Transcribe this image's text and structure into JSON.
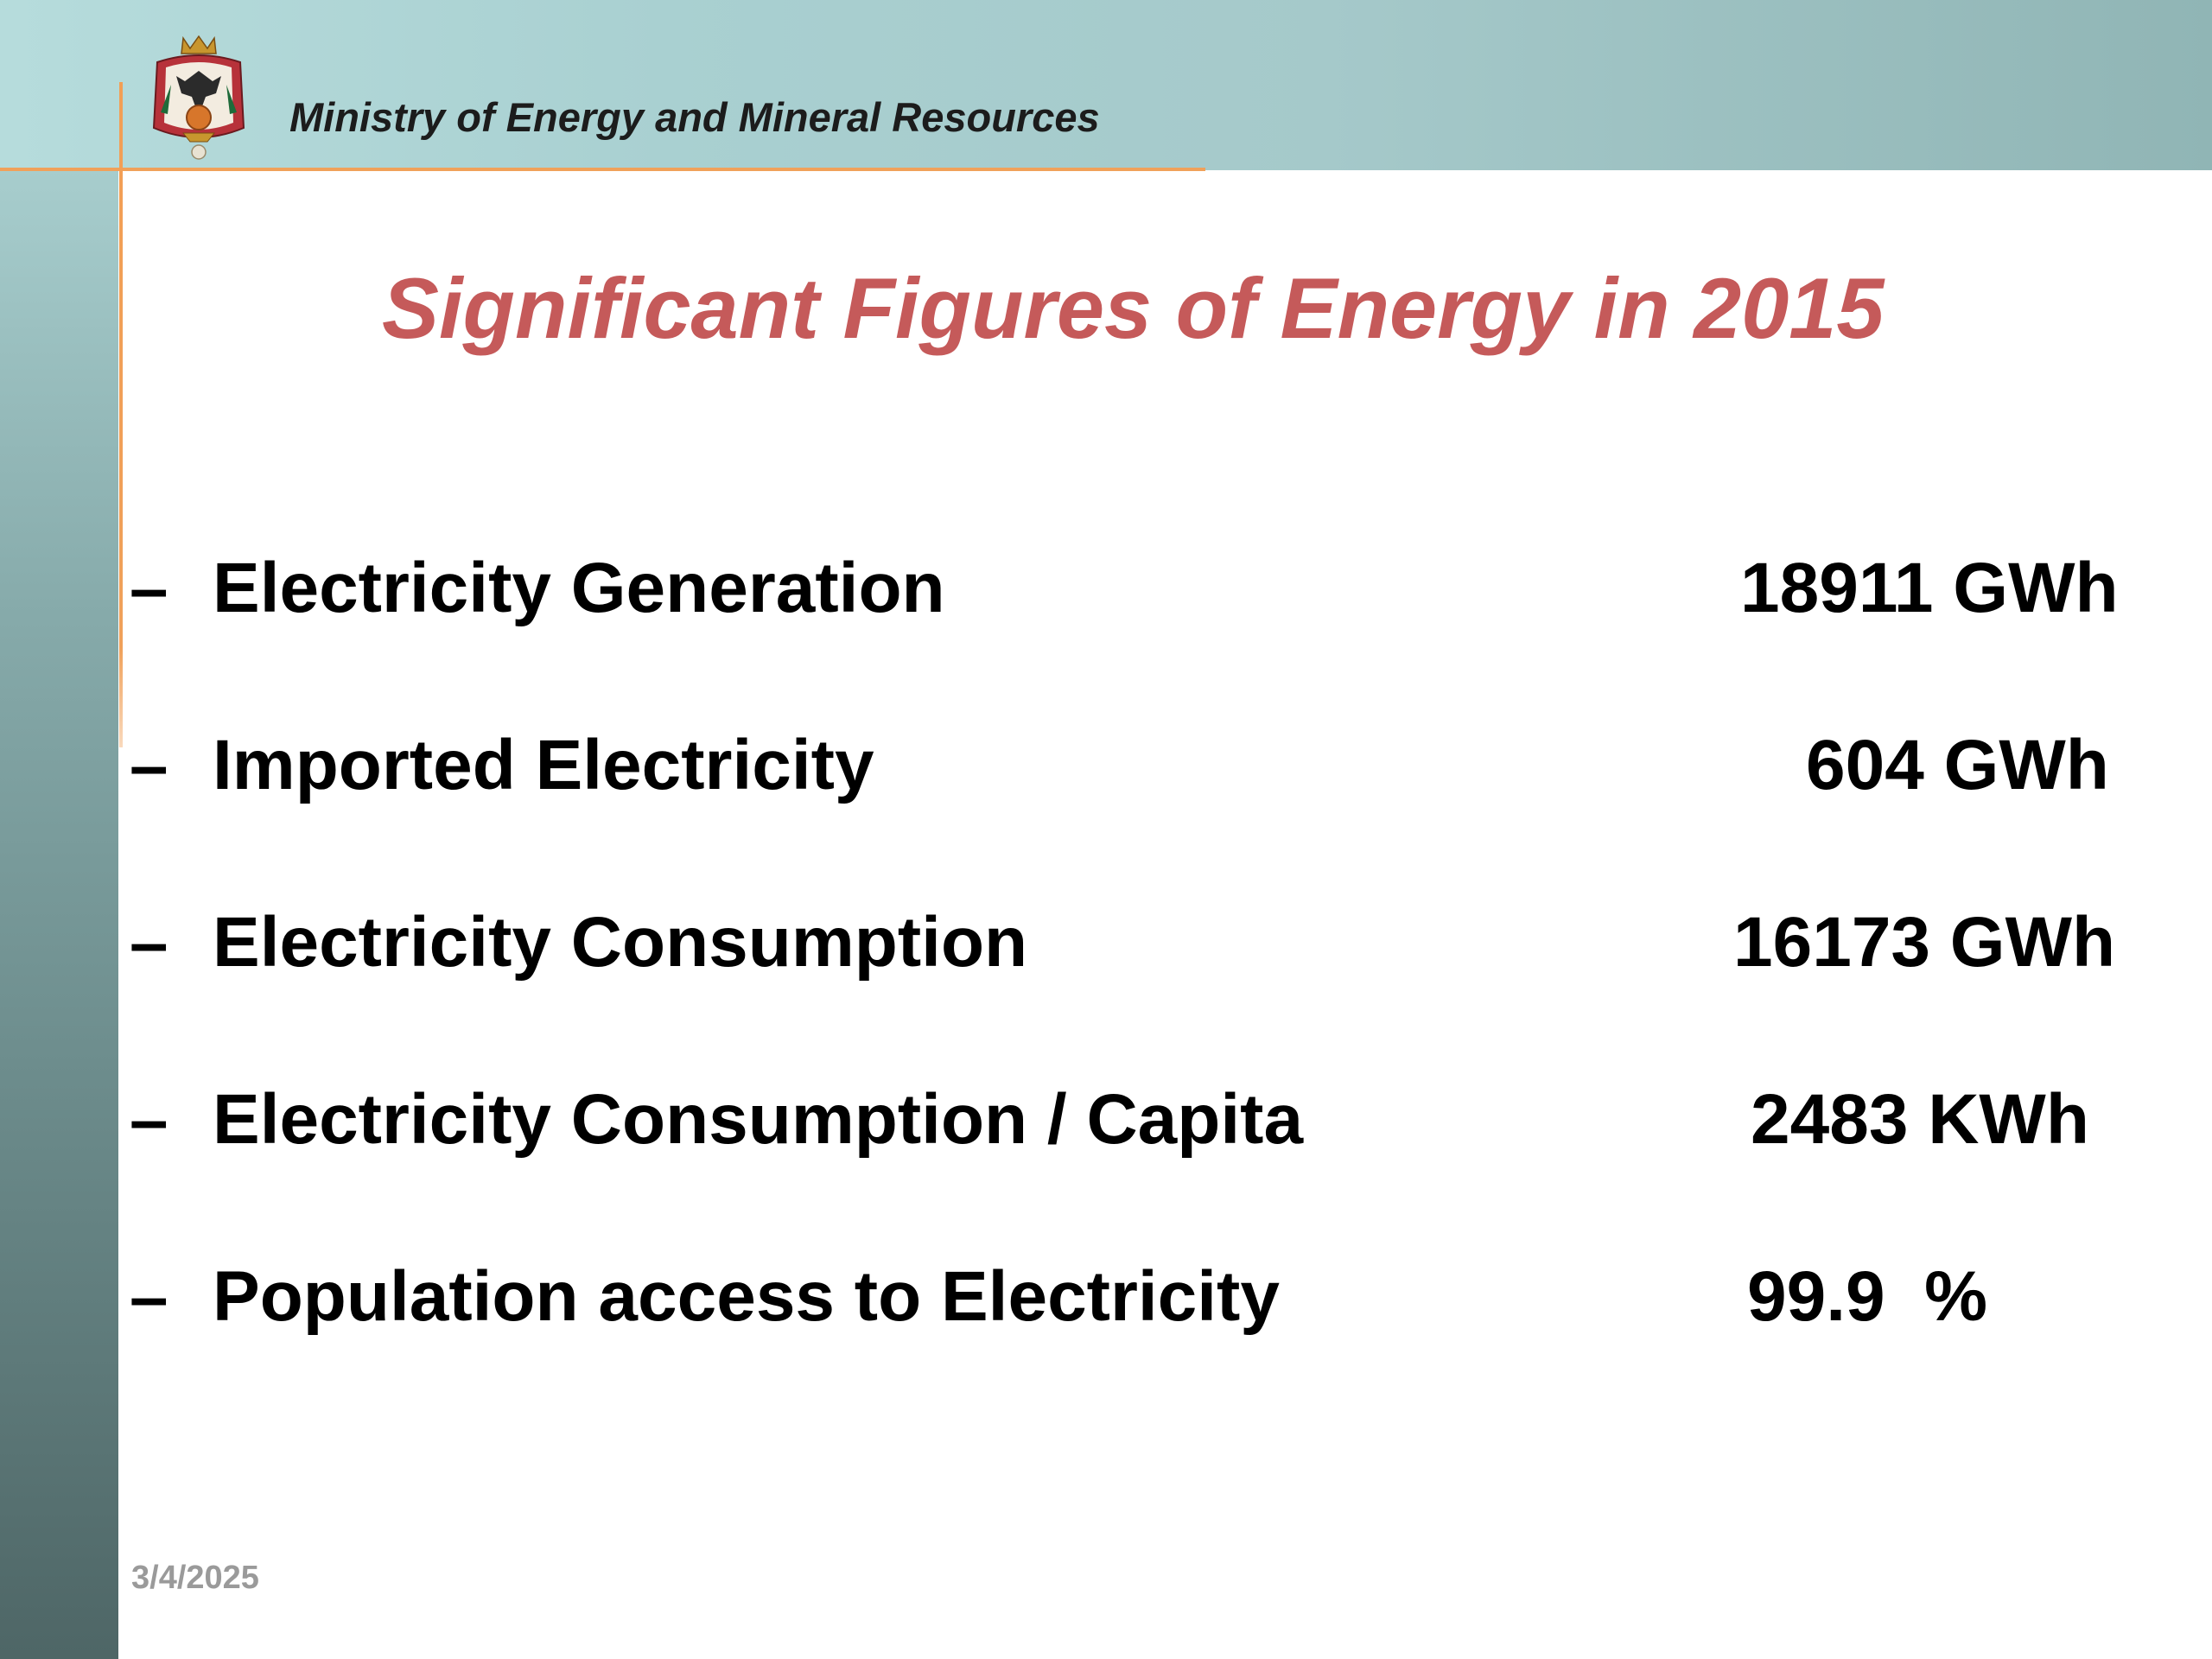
{
  "header": {
    "organization": "Ministry  of Energy and Mineral  Resources",
    "emblem_icon": "coat-of-arms-emblem"
  },
  "title": "Significant Figures of Energy in 2015",
  "figures": [
    {
      "bullet": "–",
      "label": "Electricity Generation",
      "value": "18911 GWh"
    },
    {
      "bullet": "–",
      "label": "Imported Electricity",
      "value": "604 GWh"
    },
    {
      "bullet": "–",
      "label": "Electricity Consumption",
      "value": "16173 GWh"
    },
    {
      "bullet": "–",
      "label": "Electricity Consumption / Capita",
      "value": "2483 KWh"
    },
    {
      "bullet": "–",
      "label": "Population access to Electricity",
      "value": "99.9  %"
    }
  ],
  "footer": {
    "date": "3/4/2025"
  },
  "colors": {
    "title": "#c55a5a",
    "accent_line": "#f0a15a",
    "header_band": "#a9d0d1",
    "left_band": "#6d8d8d"
  }
}
